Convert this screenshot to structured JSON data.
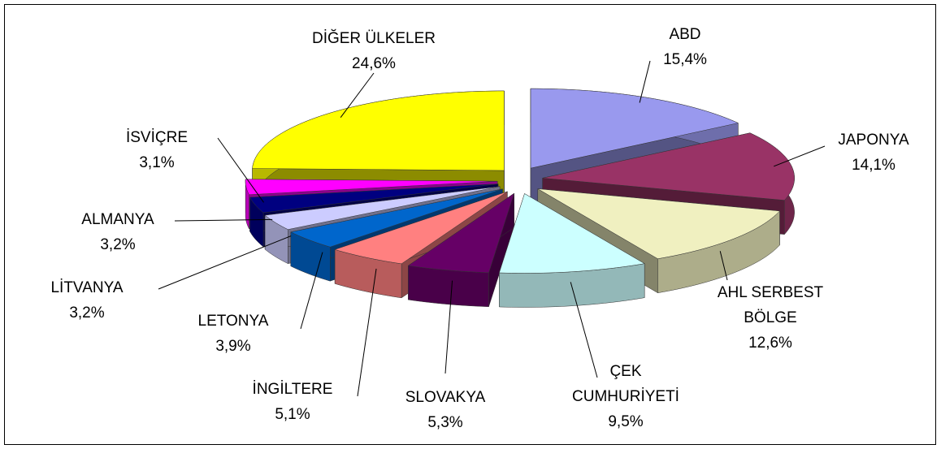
{
  "chart_data": {
    "type": "pie3d",
    "categories": [
      "ABD",
      "JAPONYA",
      "AHL SERBEST BÖLGE",
      "ÇEK CUMHURİYETİ",
      "SLOVAKYA",
      "İNGİLTERE",
      "LETONYA",
      "LİTVANYA",
      "ALMANYA",
      "İSVİÇRE",
      "DİĞER ÜLKELER"
    ],
    "values": [
      15.4,
      14.1,
      12.6,
      9.5,
      5.3,
      5.1,
      3.9,
      3.2,
      3.2,
      3.1,
      24.6
    ],
    "value_labels": [
      "15,4%",
      "14,1%",
      "12,6%",
      "9,5%",
      "5,3%",
      "5,1%",
      "3,9%",
      "3,2%",
      "3,2%",
      "3,1%",
      "24,6%"
    ],
    "colors": [
      "#9999ee",
      "#993366",
      "#f0f0c0",
      "#ccffff",
      "#660066",
      "#ff8080",
      "#0066cc",
      "#ccccff",
      "#000080",
      "#ff00ff",
      "#ffff00"
    ]
  }
}
